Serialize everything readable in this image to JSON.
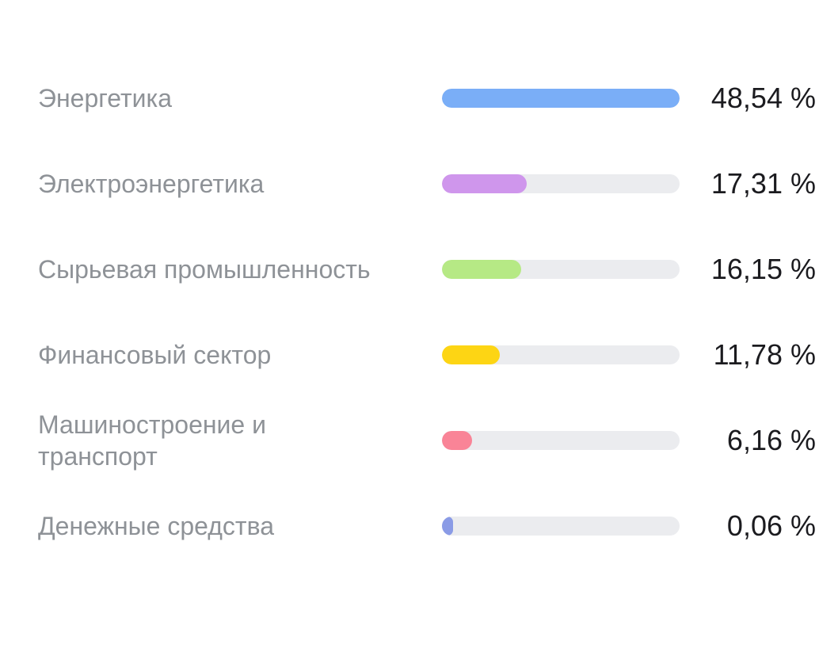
{
  "chart_data": {
    "type": "bar",
    "categories": [
      "Энергетика",
      "Электроэнергетика",
      "Сырьевая промышленность",
      "Финансовый сектор",
      "Машиностроение и транспорт",
      "Денежные средства"
    ],
    "values": [
      48.54,
      17.31,
      16.15,
      11.78,
      6.16,
      0.06
    ],
    "value_labels": [
      "48,54 %",
      "17,31 %",
      "16,15 %",
      "11,78 %",
      "6,16 %",
      "0,06 %"
    ],
    "colors": [
      "#7aaef7",
      "#cf96ec",
      "#b6e985",
      "#fdd514",
      "#f98497",
      "#8a9be6"
    ]
  }
}
